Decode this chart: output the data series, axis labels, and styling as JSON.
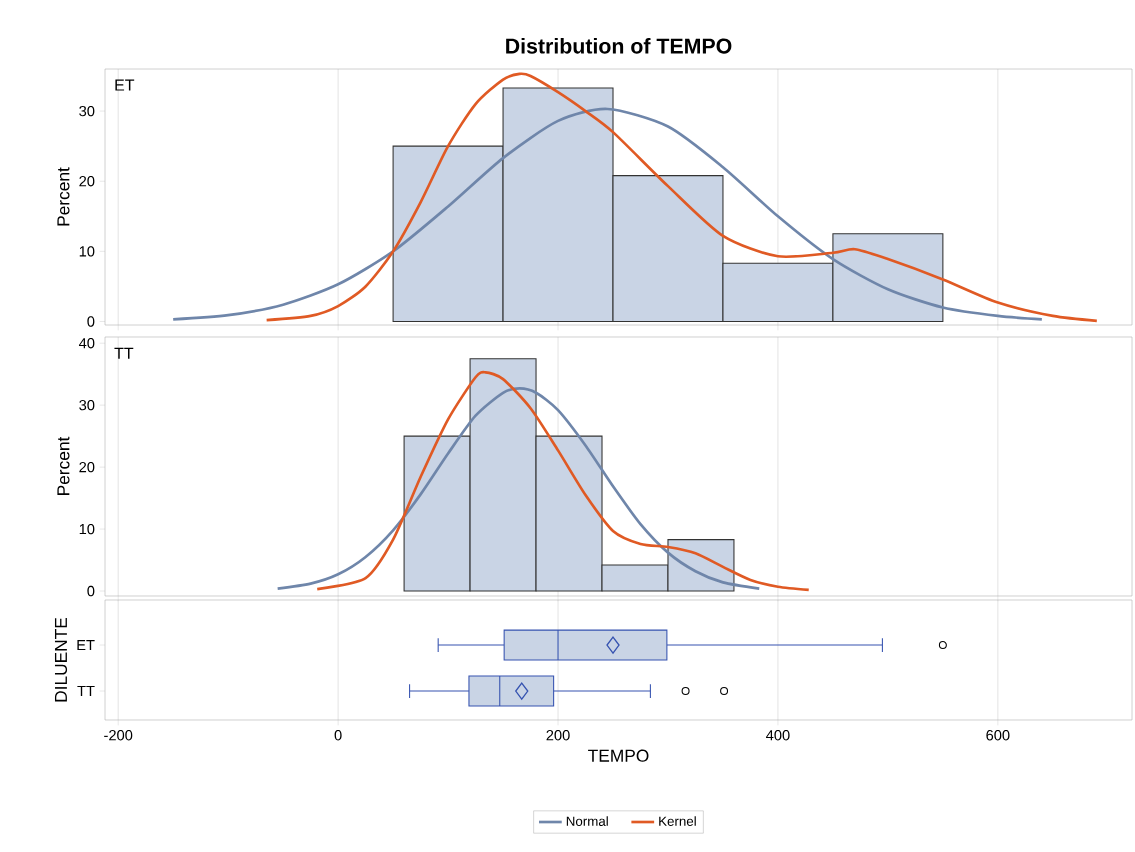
{
  "chart_data": [
    {
      "type": "histogram",
      "title": "Distribution of TEMPO",
      "ylabel": "Percent",
      "annotations": [
        "ET"
      ],
      "bins": [
        50,
        150,
        250,
        350,
        450,
        550
      ],
      "values": [
        25,
        33.3,
        20.8,
        8.3,
        12.5
      ],
      "color": "#c9d4e5",
      "series": [
        {
          "name": "Normal",
          "type": "line",
          "color": "#6f86aa",
          "x": [
            -150,
            -100,
            -50,
            0,
            50,
            100,
            150,
            200,
            245,
            300,
            350,
            400,
            450,
            500,
            550,
            600,
            640
          ],
          "values": [
            0.3,
            0.9,
            2.4,
            5.3,
            10,
            16.4,
            23.3,
            28.6,
            30.3,
            27.8,
            22,
            15,
            8.9,
            4.6,
            2,
            0.8,
            0.3
          ]
        },
        {
          "name": "Kernel",
          "type": "line",
          "color": "#e05a24",
          "x": [
            -65,
            -25,
            0,
            25,
            50,
            75,
            100,
            125,
            150,
            165,
            175,
            200,
            225,
            250,
            300,
            350,
            400,
            450,
            470,
            500,
            550,
            600,
            650,
            690
          ],
          "values": [
            0.2,
            0.8,
            2.2,
            5,
            10,
            17,
            25,
            31,
            34.5,
            35.3,
            35,
            32.7,
            30,
            27,
            19.3,
            12.2,
            9.3,
            9.8,
            10.3,
            8.9,
            6,
            2.7,
            0.8,
            0.1
          ]
        }
      ],
      "xlim": [
        -212,
        722
      ],
      "ylim": [
        -0.5,
        36
      ],
      "xticks": [
        -200,
        0,
        200,
        400,
        600
      ],
      "yticks": [
        0,
        10,
        20,
        30
      ],
      "grid": "x",
      "tick_labels": "y",
      "legend": "bottom"
    },
    {
      "type": "histogram",
      "ylabel": "Percent",
      "annotations": [
        "TT"
      ],
      "bins": [
        60,
        120,
        180,
        240,
        300,
        360
      ],
      "values": [
        25,
        37.5,
        25,
        4.2,
        8.3
      ],
      "color": "#c9d4e5",
      "series": [
        {
          "type": "line",
          "color": "#6f86aa",
          "x": [
            -55,
            -25,
            0,
            25,
            50,
            75,
            100,
            125,
            150,
            165,
            180,
            200,
            225,
            250,
            275,
            300,
            325,
            350,
            383
          ],
          "values": [
            0.4,
            1.2,
            2.7,
            5.5,
            9.8,
            15.6,
            22.2,
            28.3,
            32,
            32.7,
            32,
            29.2,
            23.5,
            16.9,
            10.8,
            6.2,
            3.2,
            1.4,
            0.4
          ]
        },
        {
          "type": "line",
          "color": "#e05a24",
          "x": [
            -19,
            25,
            50,
            75,
            100,
            125,
            134,
            150,
            175,
            200,
            225,
            250,
            275,
            300,
            325,
            350,
            375,
            400,
            428
          ],
          "values": [
            0.3,
            2.1,
            8.3,
            18.4,
            27.7,
            34.5,
            35.3,
            34.2,
            29.5,
            22.7,
            15.5,
            9.7,
            7.6,
            7.1,
            6.1,
            3.9,
            1.8,
            0.7,
            0.2
          ]
        }
      ],
      "xlim": [
        -212,
        722
      ],
      "ylim": [
        -0.8,
        41
      ],
      "xticks": [
        -200,
        0,
        200,
        400,
        600
      ],
      "yticks": [
        0,
        10,
        20,
        30,
        40
      ],
      "grid": "x",
      "tick_labels": "y"
    },
    {
      "type": "box",
      "orientation": "horizontal",
      "xlabel": "TEMPO",
      "ylabel": "DILUENTE",
      "categories": [
        "ET",
        "TT"
      ],
      "color": "#c9d4e5",
      "boxes": [
        {
          "low": 91,
          "q1": 151,
          "median": 200,
          "q3": 299,
          "high": 495,
          "mean": 250,
          "outliers": [
            550
          ]
        },
        {
          "low": 65,
          "q1": 119,
          "median": 147,
          "q3": 196,
          "high": 284,
          "mean": 167,
          "outliers": [
            316,
            351
          ]
        }
      ],
      "xlim": [
        -212,
        722
      ],
      "xticks": [
        -200,
        0,
        200,
        400,
        600
      ],
      "grid": "x"
    }
  ]
}
